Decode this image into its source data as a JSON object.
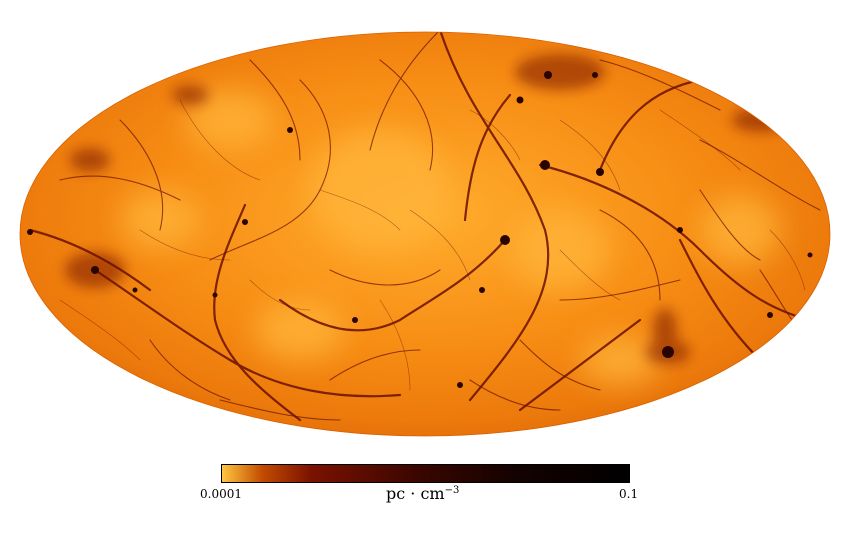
{
  "map": {
    "projection": "Mollweide",
    "variable_unit_text": "pc · cm",
    "variable_unit_exponent": "−3",
    "colormap": {
      "name": "afmhot-reversed",
      "low_color": "#ffc640",
      "mid_color": "#7a1200",
      "high_color": "#000000"
    },
    "colorbar": {
      "min_label": "0.0001",
      "max_label": "0.1",
      "scale": "log"
    }
  }
}
